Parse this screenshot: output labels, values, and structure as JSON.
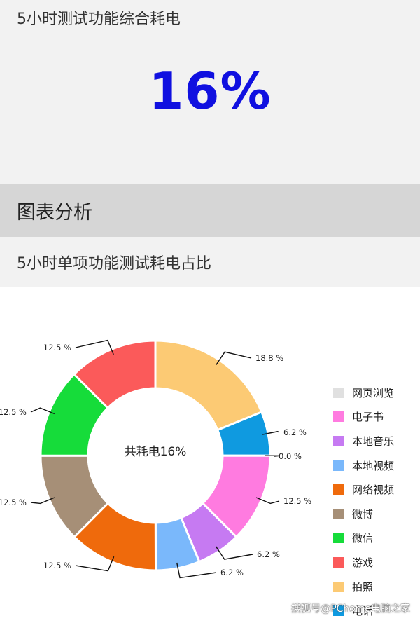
{
  "header": {
    "title": "5小时测试功能综合耗电",
    "value": "16%"
  },
  "section": {
    "title": "图表分析"
  },
  "subsection": {
    "title": "5小时单项功能测试耗电占比"
  },
  "chart_data": {
    "type": "pie",
    "variant": "donut",
    "center_label": "共耗电16%",
    "legend_placement": "right",
    "categories": [
      "网页浏览",
      "电子书",
      "本地音乐",
      "本地视频",
      "网络视频",
      "微博",
      "微信",
      "游戏",
      "拍照",
      "电话"
    ],
    "values": [
      0.0,
      12.5,
      6.2,
      6.2,
      12.5,
      12.5,
      12.5,
      12.5,
      18.8,
      6.2
    ],
    "value_labels": [
      "0.0 %",
      "12.5 %",
      "6.2 %",
      "6.2 %",
      "12.5 %",
      "12.5 %",
      "12.5 %",
      "12.5 %",
      "18.8 %",
      "6.2 %"
    ],
    "colors": [
      "#e0e0e0",
      "#ff7be0",
      "#c67af2",
      "#7ab8fb",
      "#ef6a0c",
      "#a68f77",
      "#16dc3a",
      "#fb5a5a",
      "#fcca74",
      "#0f9ae0"
    ]
  },
  "watermark": "搜狐号@PChome电脑之家"
}
